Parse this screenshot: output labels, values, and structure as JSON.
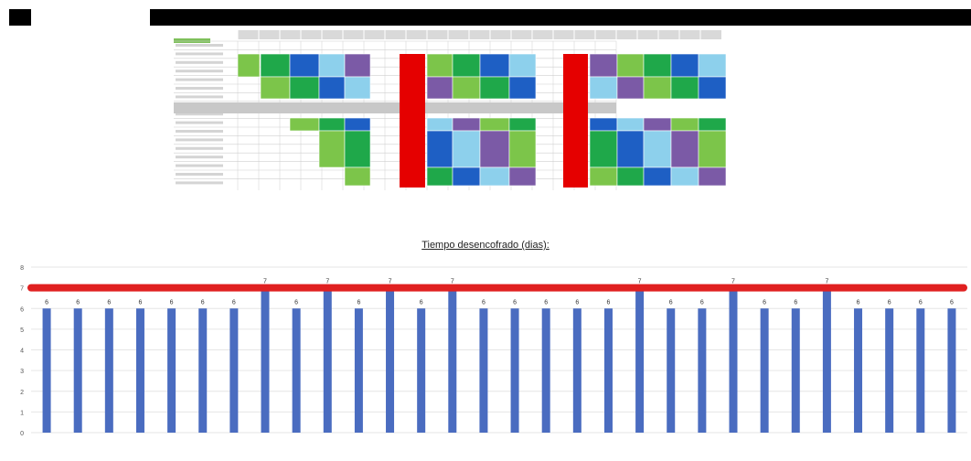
{
  "chart_data": {
    "type": "bar",
    "title": "Tiempo desencofrado (dias):",
    "xlabel": "",
    "ylabel": "",
    "ylim": [
      0,
      8
    ],
    "categories": [
      "",
      "",
      "",
      "",
      "",
      "",
      "",
      "",
      "",
      "",
      "",
      "",
      "",
      "",
      "",
      "",
      "",
      "",
      "",
      "",
      "",
      "",
      "",
      "",
      "",
      "",
      "",
      "",
      "",
      ""
    ],
    "series": [
      {
        "values": [
          6,
          6,
          6,
          6,
          6,
          6,
          6,
          7,
          6,
          7,
          6,
          7,
          6,
          7,
          6,
          6,
          6,
          6,
          6,
          7,
          6,
          6,
          7,
          6,
          6,
          7,
          6,
          6,
          6,
          6
        ]
      }
    ],
    "threshold": 7,
    "grid": true,
    "legend": "none",
    "colors": {
      "bar": "#4a6cc0",
      "threshold": "#e02020",
      "grid": "#e6e6e6"
    }
  },
  "schedule": {
    "header_cells": [
      "",
      "",
      "",
      "",
      "",
      "",
      "",
      "",
      "",
      "",
      "",
      "",
      "",
      "",
      "",
      "",
      "",
      "",
      "",
      "",
      "",
      "",
      ""
    ],
    "row_labels": [
      "",
      "",
      "",
      "",
      "",
      "",
      "",
      "",
      "",
      "",
      "",
      "",
      "",
      "",
      "",
      "",
      ""
    ],
    "colors": {
      "header_fill": "#d9d9d9",
      "section_fill": "#c8c8c8",
      "label_green": "#7ec05a",
      "grid_line": "#cfcfcf",
      "red_block": "#e50000",
      "palette": [
        "#1fa84a",
        "#1e5fc4",
        "#8dd0ec",
        "#7b5aa6",
        "#7cc54a"
      ]
    }
  }
}
